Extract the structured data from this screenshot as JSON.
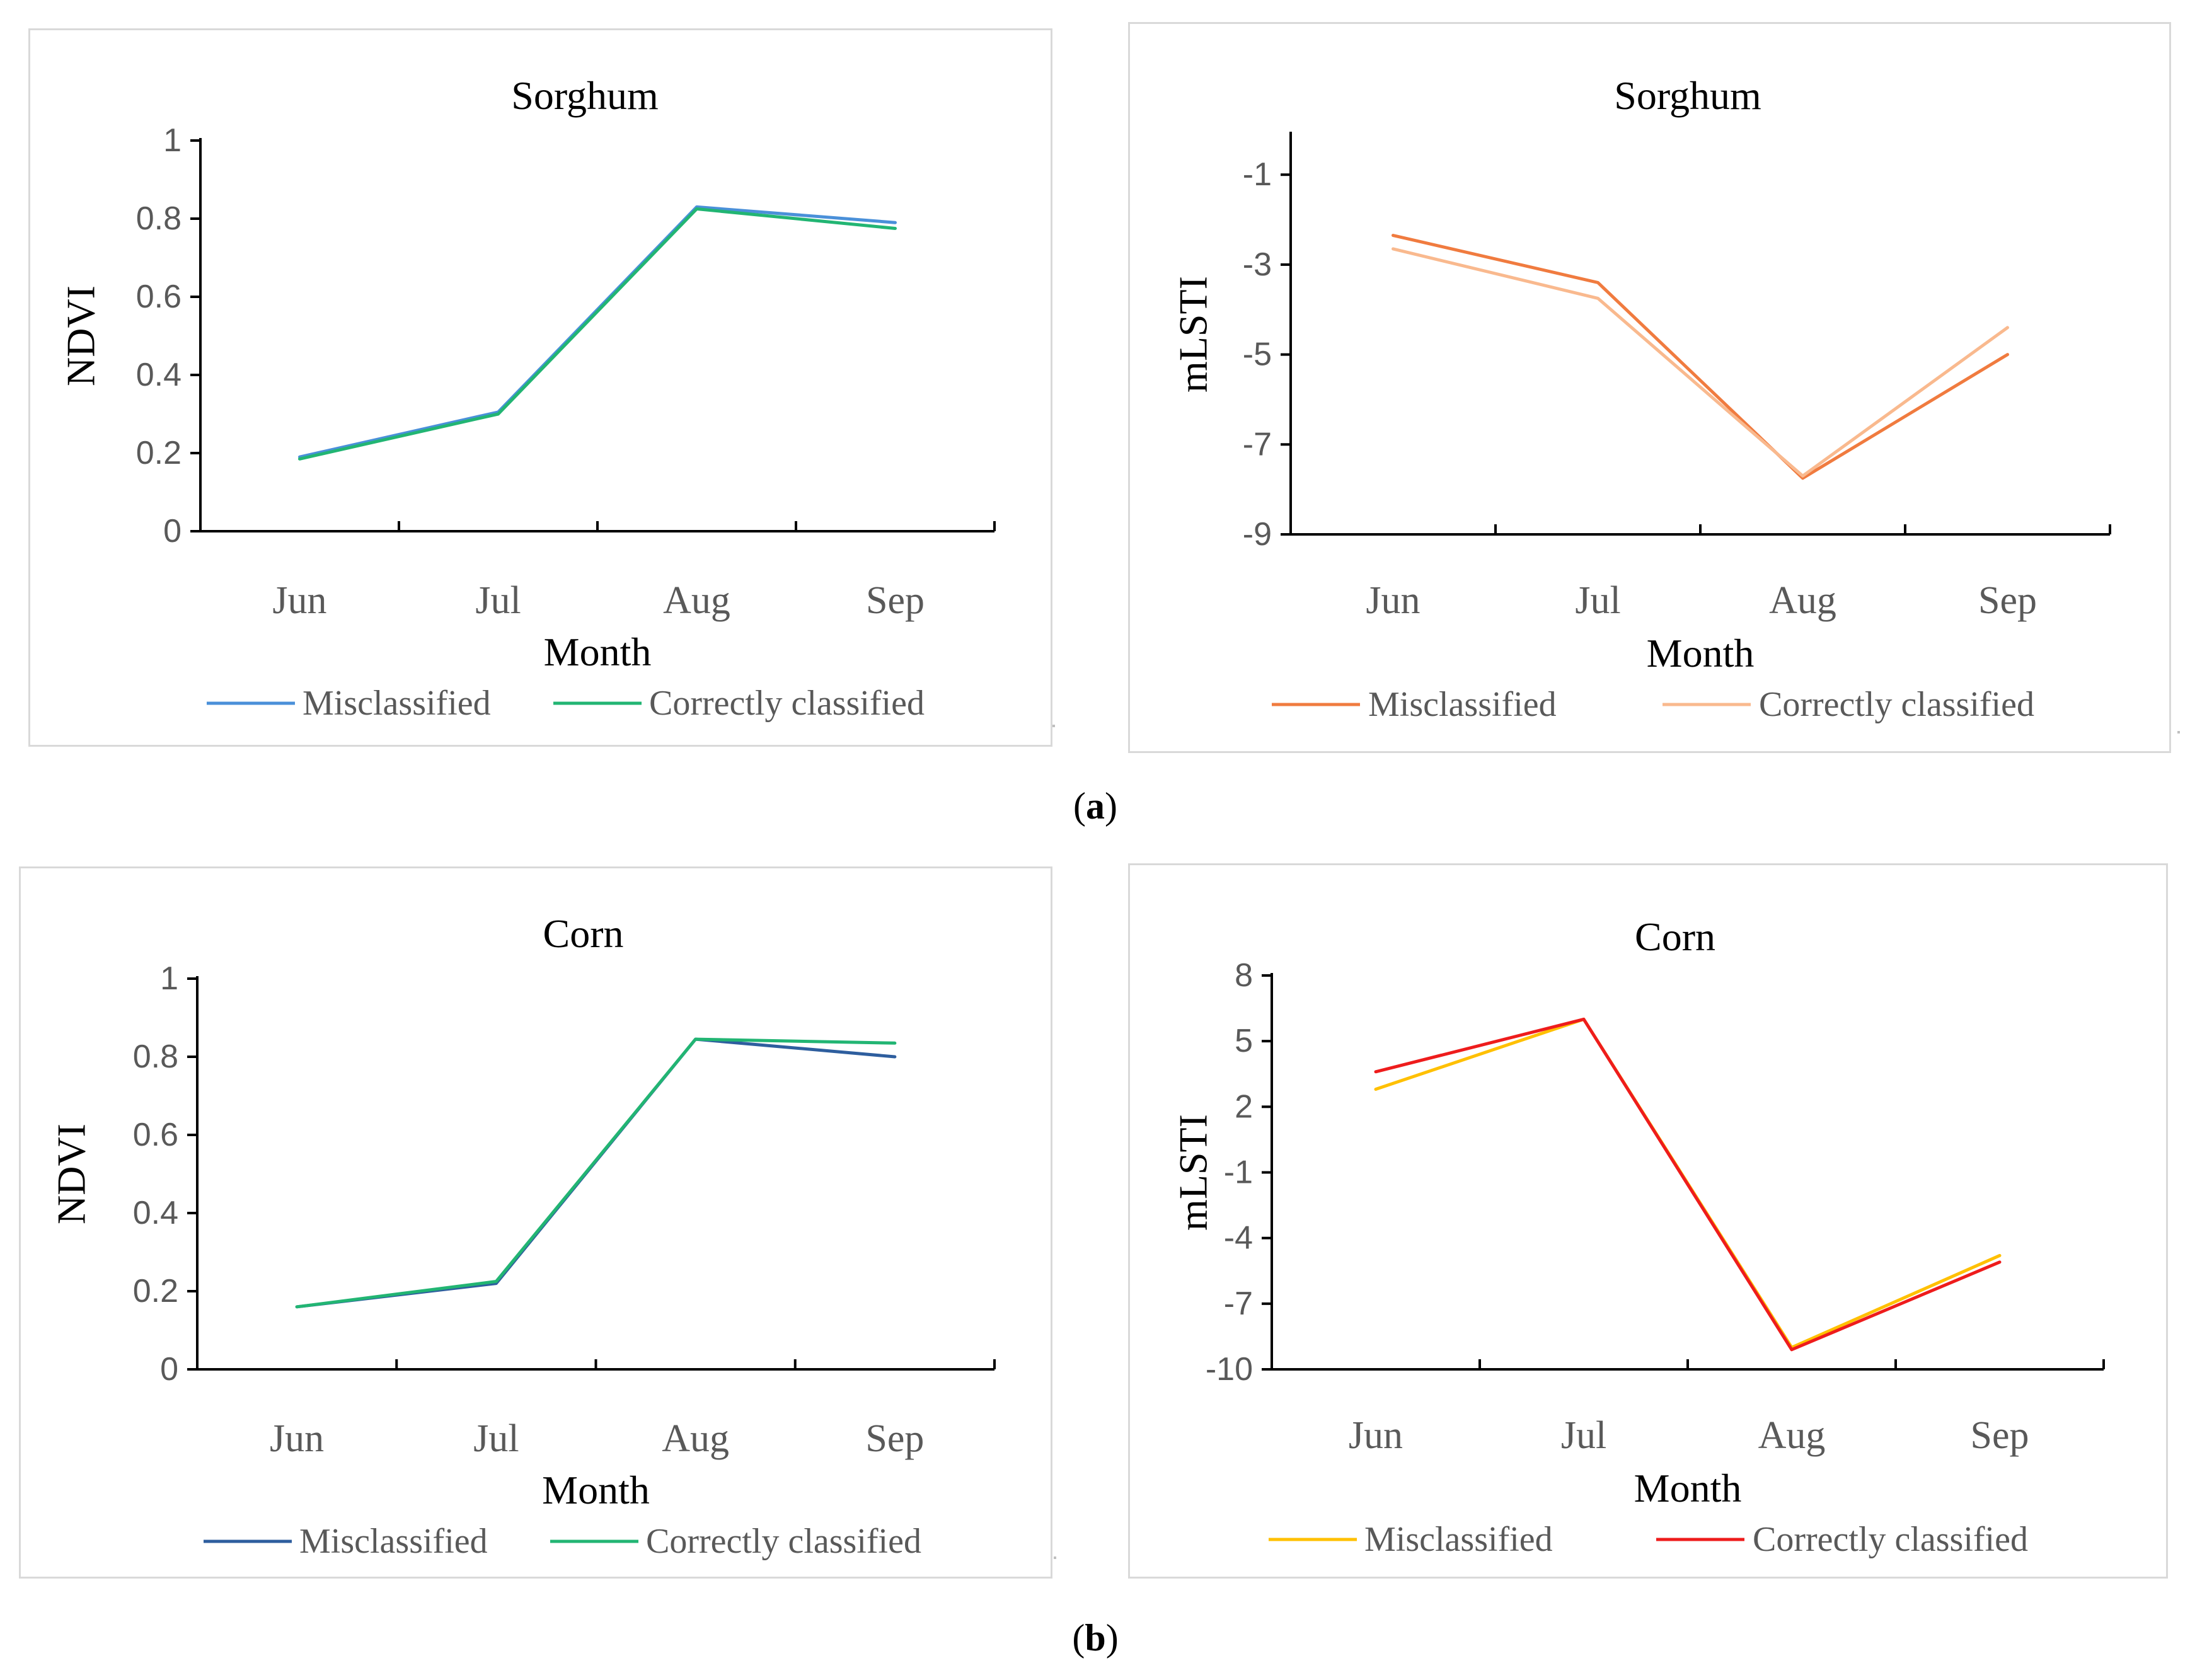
{
  "captions": [
    "a",
    "b"
  ],
  "chart_data": [
    {
      "type": "line",
      "title": "Sorghum",
      "xlabel": "Month",
      "ylabel": "NDVI",
      "categories": [
        "Jun",
        "Jul",
        "Aug",
        "Sep"
      ],
      "ylim": [
        0,
        1
      ],
      "yticks": [
        "0",
        "0.2",
        "0.4",
        "0.6",
        "0.8",
        "1"
      ],
      "ytick_values": [
        0,
        0.2,
        0.4,
        0.6,
        0.8,
        1
      ],
      "series": [
        {
          "name": "Misclassified",
          "values": [
            0.19,
            0.305,
            0.83,
            0.79
          ],
          "color": "#4a90d9"
        },
        {
          "name": "Correctly classified",
          "values": [
            0.185,
            0.3,
            0.825,
            0.775
          ],
          "color": "#22b573"
        }
      ],
      "legend": "bottom"
    },
    {
      "type": "line",
      "title": "Sorghum",
      "xlabel": "Month",
      "ylabel": "mLSTI",
      "categories": [
        "Jun",
        "Jul",
        "Aug",
        "Sep"
      ],
      "ylim": [
        -9,
        -0.1
      ],
      "yticks": [
        "-9",
        "-7",
        "-5",
        "-3",
        "-1"
      ],
      "ytick_values": [
        -9,
        -7,
        -5,
        -3,
        -1
      ],
      "series": [
        {
          "name": "Misclassified",
          "values": [
            -2.35,
            -3.4,
            -7.75,
            -5.0
          ],
          "color": "#f07b3f"
        },
        {
          "name": "Correctly classified",
          "values": [
            -2.65,
            -3.75,
            -7.7,
            -4.4
          ],
          "color": "#f9b98e"
        }
      ],
      "legend": "bottom"
    },
    {
      "type": "line",
      "title": "Corn",
      "xlabel": "Month",
      "ylabel": "NDVI",
      "categories": [
        "Jun",
        "Jul",
        "Aug",
        "Sep"
      ],
      "ylim": [
        0,
        1
      ],
      "yticks": [
        "0",
        "0.2",
        "0.4",
        "0.6",
        "0.8",
        "1"
      ],
      "ytick_values": [
        0,
        0.2,
        0.4,
        0.6,
        0.8,
        1
      ],
      "series": [
        {
          "name": "Misclassified",
          "values": [
            0.16,
            0.22,
            0.845,
            0.8
          ],
          "color": "#2e5e9e"
        },
        {
          "name": "Correctly classified",
          "values": [
            0.16,
            0.225,
            0.845,
            0.835
          ],
          "color": "#22b573"
        }
      ],
      "legend": "bottom"
    },
    {
      "type": "line",
      "title": "Corn",
      "xlabel": "Month",
      "ylabel": "mLSTI",
      "categories": [
        "Jun",
        "Jul",
        "Aug",
        "Sep"
      ],
      "ylim": [
        -10,
        8
      ],
      "yticks": [
        "-10",
        "-7",
        "-4",
        "-1",
        "2",
        "5",
        "8"
      ],
      "ytick_values": [
        -10,
        -7,
        -4,
        -1,
        2,
        5,
        8
      ],
      "series": [
        {
          "name": "Misclassified",
          "values": [
            2.8,
            6.0,
            -9.0,
            -4.8
          ],
          "color": "#ffc000"
        },
        {
          "name": "Correctly classified",
          "values": [
            3.6,
            6.0,
            -9.1,
            -5.1
          ],
          "color": "#ee1c1c"
        }
      ],
      "legend": "bottom"
    }
  ]
}
